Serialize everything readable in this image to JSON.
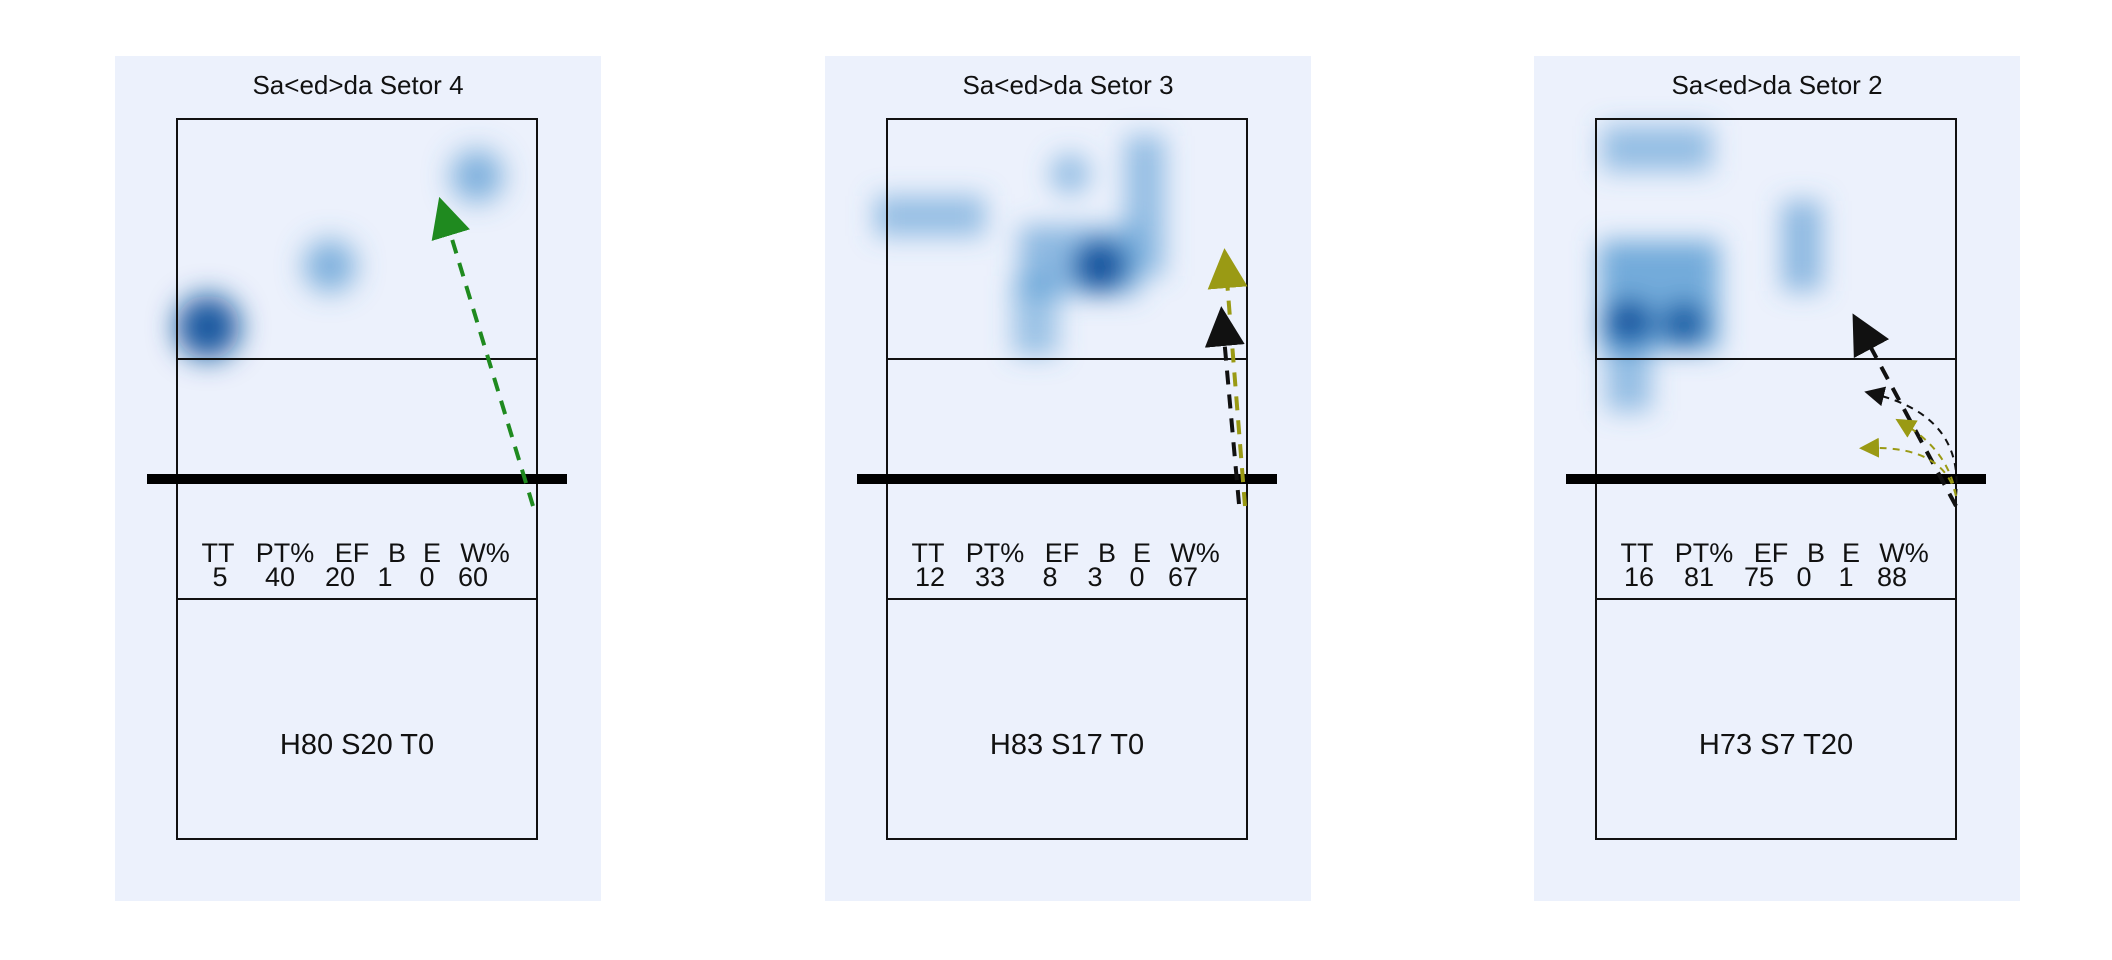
{
  "panels": [
    {
      "title": "Sa<ed>da Setor 4",
      "stats_headers": [
        "TT",
        "PT%",
        "EF",
        "B",
        "E",
        "W%"
      ],
      "stats_values": [
        "5",
        "40",
        "20",
        "1",
        "0",
        "60"
      ],
      "footer": "H80 S20 T0",
      "arrow_colors": [
        "#1f8a1f"
      ]
    },
    {
      "title": "Sa<ed>da Setor 3",
      "stats_headers": [
        "TT",
        "PT%",
        "EF",
        "B",
        "E",
        "W%"
      ],
      "stats_values": [
        "12",
        "33",
        "8",
        "3",
        "0",
        "67"
      ],
      "footer": "H83 S17 T0",
      "arrow_colors": [
        "#9a9a14",
        "#111111"
      ]
    },
    {
      "title": "Sa<ed>da Setor 2",
      "stats_headers": [
        "TT",
        "PT%",
        "EF",
        "B",
        "E",
        "W%"
      ],
      "stats_values": [
        "16",
        "81",
        "75",
        "0",
        "1",
        "88"
      ],
      "footer": "H73 S7 T20",
      "arrow_colors": [
        "#111111",
        "#9a9a14"
      ]
    }
  ],
  "colors": {
    "panel_bg": "#ecf1fc",
    "heat": "#0b4f9a"
  }
}
